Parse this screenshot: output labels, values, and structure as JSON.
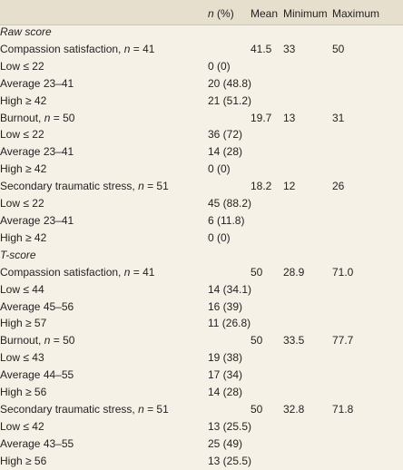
{
  "header": {
    "n_pct_italic": "n",
    "n_pct_rest": " (%)",
    "mean": "Mean",
    "minimum": "Minimum",
    "maximum": "Maximum"
  },
  "sections": [
    {
      "section_label": "Raw score",
      "groups": [
        {
          "label": "Compassion satisfaction, ",
          "n_label": "n",
          "n_value": " = 41",
          "mean": "41.5",
          "minimum": "33",
          "maximum": "50",
          "rows": [
            {
              "label": "Low ≤ 22",
              "value": "0 (0)"
            },
            {
              "label": "Average 23–41",
              "value": "20 (48.8)"
            },
            {
              "label": "High ≥ 42",
              "value": "21 (51.2)"
            }
          ]
        },
        {
          "label": "Burnout, ",
          "n_label": "n",
          "n_value": " = 50",
          "mean": "19.7",
          "minimum": "13",
          "maximum": "31",
          "rows": [
            {
              "label": "Low ≤ 22",
              "value": "36 (72)"
            },
            {
              "label": "Average 23–41",
              "value": "14 (28)"
            },
            {
              "label": "High ≥ 42",
              "value": "0 (0)"
            }
          ]
        },
        {
          "label": "Secondary traumatic stress, ",
          "n_label": "n",
          "n_value": " = 51",
          "mean": "18.2",
          "minimum": "12",
          "maximum": "26",
          "rows": [
            {
              "label": "Low ≤ 22",
              "value": "45 (88.2)"
            },
            {
              "label": "Average 23–41",
              "value": "6 (11.8)"
            },
            {
              "label": "High ≥ 42",
              "value": "0 (0)"
            }
          ]
        }
      ]
    },
    {
      "section_label": "T-score",
      "groups": [
        {
          "label": "Compassion satisfaction, ",
          "n_label": "n",
          "n_value": " = 41",
          "mean": "50",
          "minimum": "28.9",
          "maximum": "71.0",
          "rows": [
            {
              "label": "Low ≤ 44",
              "value": "14 (34.1)"
            },
            {
              "label": "Average 45–56",
              "value": "16 (39)"
            },
            {
              "label": "High ≥ 57",
              "value": "11 (26.8)"
            }
          ]
        },
        {
          "label": "Burnout, ",
          "n_label": "n",
          "n_value": " = 50",
          "mean": "50",
          "minimum": "33.5",
          "maximum": "77.7",
          "rows": [
            {
              "label": "Low ≤ 43",
              "value": "19 (38)"
            },
            {
              "label": "Average 44–55",
              "value": "17 (34)"
            },
            {
              "label": "High ≥ 56",
              "value": "14 (28)"
            }
          ]
        },
        {
          "label": "Secondary traumatic stress, ",
          "n_label": "n",
          "n_value": " = 51",
          "mean": "50",
          "minimum": "32.8",
          "maximum": "71.8",
          "rows": [
            {
              "label": "Low ≤ 42",
              "value": "13 (25.5)"
            },
            {
              "label": "Average 43–55",
              "value": "25 (49)"
            },
            {
              "label": "High ≥ 56",
              "value": "13 (25.5)"
            }
          ]
        }
      ]
    }
  ]
}
